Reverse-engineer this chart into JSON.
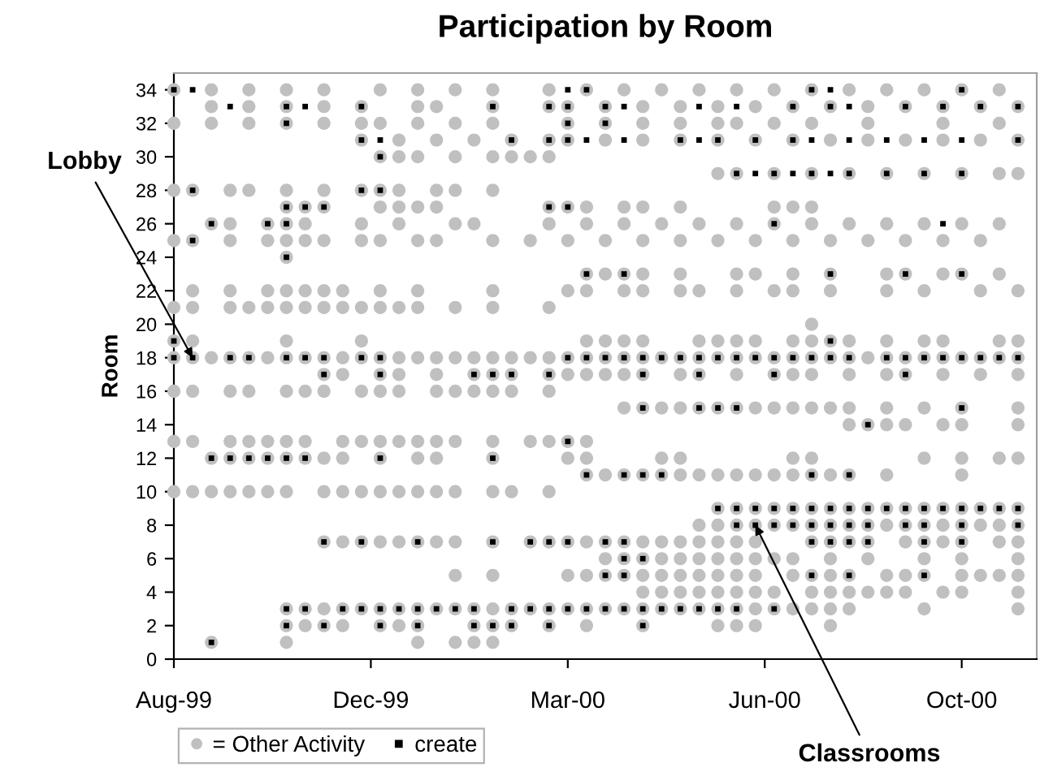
{
  "chart_data": {
    "type": "scatter",
    "title": "Participation by Room",
    "ylabel": "Room",
    "xlim": [
      "1999-08-20",
      "2000-11-22"
    ],
    "xticks": [
      {
        "value": "1999-08-20",
        "label": "Aug-99"
      },
      {
        "value": "1999-12-03",
        "label": "Dec-99"
      },
      {
        "value": "2000-03-17",
        "label": "Mar-00"
      },
      {
        "value": "2000-06-30",
        "label": "Jun-00"
      },
      {
        "value": "2000-10-13",
        "label": "Oct-00"
      }
    ],
    "ylim": [
      0,
      35
    ],
    "yticks": [
      0,
      2,
      4,
      6,
      8,
      10,
      12,
      14,
      16,
      18,
      20,
      22,
      24,
      26,
      28,
      30,
      32,
      34
    ],
    "grid": false,
    "legend": "bottom left",
    "annotations": [
      {
        "text": "Lobby",
        "x": "1999-08-30",
        "y": 18
      },
      {
        "text": "Classrooms",
        "x": "2000-06-25",
        "y": 8
      }
    ],
    "series": [
      {
        "name": "= Other Activity",
        "color": "#c0c0c0",
        "marker": "circle",
        "x": [
          "1999-08-20",
          "1999-09-09",
          "1999-09-29",
          "1999-10-19",
          "1999-11-08",
          "1999-12-08",
          "1999-12-28",
          "2000-01-17",
          "2000-02-06",
          "2000-03-07",
          "2000-03-27",
          "2000-04-16",
          "2000-05-06",
          "2000-05-26",
          "2000-06-15",
          "2000-07-05",
          "2000-07-25",
          "2000-08-14",
          "2000-09-03",
          "2000-09-23",
          "2000-10-13",
          "2000-11-02",
          "1999-09-09",
          "1999-09-29",
          "1999-10-19",
          "1999-11-08",
          "1999-11-28",
          "1999-12-28",
          "2000-01-07",
          "2000-02-06",
          "2000-03-07",
          "2000-03-17",
          "2000-04-06",
          "2000-04-26",
          "2000-05-16",
          "2000-06-05",
          "2000-06-25",
          "2000-07-15",
          "2000-08-04",
          "2000-08-24",
          "2000-09-13",
          "2000-10-03",
          "2000-10-23",
          "2000-11-12",
          "1999-08-20",
          "1999-09-09",
          "1999-09-29",
          "1999-10-19",
          "1999-11-08",
          "1999-11-28",
          "1999-12-08",
          "1999-12-28",
          "2000-01-17",
          "2000-02-06",
          "2000-03-17",
          "2000-04-06",
          "2000-04-26",
          "2000-05-16",
          "2000-06-05",
          "2000-06-15",
          "2000-07-05",
          "2000-07-25",
          "2000-08-24",
          "2000-10-03",
          "2000-11-02",
          "1999-11-28",
          "1999-12-18",
          "2000-01-07",
          "2000-01-27",
          "2000-02-16",
          "2000-03-07",
          "2000-03-17",
          "2000-04-06",
          "2000-04-26",
          "2000-05-16",
          "2000-06-05",
          "2000-06-25",
          "2000-07-15",
          "2000-08-04",
          "2000-08-24",
          "2000-09-13",
          "2000-10-03",
          "2000-10-23",
          "2000-11-12",
          "1999-12-08",
          "1999-12-18",
          "1999-12-28",
          "2000-01-17",
          "2000-02-06",
          "2000-02-16",
          "2000-02-26",
          "2000-03-07",
          "2000-06-05",
          "2000-06-15",
          "2000-07-05",
          "2000-07-25",
          "2000-08-14",
          "2000-09-03",
          "2000-09-23",
          "2000-10-13",
          "2000-11-02",
          "2000-11-12",
          "1999-08-20",
          "1999-08-30",
          "1999-09-19",
          "1999-09-29",
          "1999-10-19",
          "1999-11-08",
          "1999-11-28",
          "1999-12-08",
          "1999-12-18",
          "2000-01-07",
          "2000-01-17",
          "2000-02-06",
          "1999-10-19",
          "1999-10-29",
          "1999-11-08",
          "1999-12-08",
          "1999-12-18",
          "1999-12-28",
          "2000-01-07",
          "2000-03-07",
          "2000-03-17",
          "2000-03-27",
          "2000-04-16",
          "2000-04-26",
          "2000-05-16",
          "2000-07-05",
          "2000-07-15",
          "2000-07-25",
          "1999-09-09",
          "1999-09-19",
          "1999-10-09",
          "1999-10-19",
          "1999-10-29",
          "1999-11-28",
          "1999-12-18",
          "2000-01-17",
          "2000-01-27",
          "2000-03-07",
          "2000-03-27",
          "2000-04-16",
          "2000-05-06",
          "2000-05-26",
          "2000-06-15",
          "2000-07-05",
          "2000-07-25",
          "2000-08-14",
          "2000-09-03",
          "2000-09-23",
          "2000-10-13",
          "2000-11-02",
          "1999-08-20",
          "1999-08-30",
          "1999-09-19",
          "1999-10-09",
          "1999-10-19",
          "1999-10-29",
          "1999-11-08",
          "1999-11-28",
          "1999-12-08",
          "1999-12-28",
          "2000-01-07",
          "2000-02-06",
          "2000-02-26",
          "2000-03-17",
          "2000-04-06",
          "2000-04-26",
          "2000-05-16",
          "2000-06-05",
          "2000-06-25",
          "2000-07-15",
          "2000-08-04",
          "2000-08-24",
          "2000-09-13",
          "2000-10-03",
          "2000-10-23",
          "1999-10-19",
          "2000-03-27",
          "2000-04-06",
          "2000-04-16",
          "2000-04-26",
          "2000-05-16",
          "2000-06-15",
          "2000-06-25",
          "2000-07-15",
          "2000-08-04",
          "2000-09-03",
          "2000-09-13",
          "2000-10-03",
          "2000-10-13",
          "2000-11-02",
          "1999-08-30",
          "1999-09-19",
          "1999-10-09",
          "1999-10-19",
          "1999-10-29",
          "1999-11-08",
          "1999-11-18",
          "1999-12-08",
          "1999-12-28",
          "2000-02-06",
          "2000-03-17",
          "2000-03-27",
          "2000-04-16",
          "2000-04-26",
          "2000-05-16",
          "2000-05-26",
          "2000-06-15",
          "2000-07-05",
          "2000-07-15",
          "2000-08-04",
          "2000-09-03",
          "2000-09-23",
          "2000-10-23",
          "2000-11-12",
          "1999-08-20",
          "1999-08-30",
          "1999-09-19",
          "1999-09-29",
          "1999-10-09",
          "1999-10-19",
          "1999-10-29",
          "1999-11-08",
          "1999-11-18",
          "1999-11-28",
          "1999-12-08",
          "1999-12-18",
          "1999-12-28",
          "2000-01-17",
          "2000-02-06",
          "2000-03-07",
          "2000-07-25",
          "1999-08-20",
          "1999-08-30",
          "1999-10-19",
          "1999-11-28",
          "2000-03-27",
          "2000-04-06",
          "2000-04-16",
          "2000-04-26",
          "2000-05-26",
          "2000-06-05",
          "2000-06-15",
          "2000-06-25",
          "2000-07-15",
          "2000-07-25",
          "2000-08-04",
          "2000-08-14",
          "2000-09-03",
          "2000-09-23",
          "2000-10-03",
          "2000-11-02",
          "2000-11-12",
          "1999-08-20",
          "1999-08-30",
          "1999-09-09",
          "1999-09-19",
          "1999-09-29",
          "1999-10-09",
          "1999-10-19",
          "1999-10-29",
          "1999-11-08",
          "1999-11-18",
          "1999-11-28",
          "1999-12-08",
          "1999-12-18",
          "1999-12-28",
          "2000-01-07",
          "2000-01-17",
          "2000-01-27",
          "2000-02-06",
          "2000-02-16",
          "2000-02-26",
          "2000-03-07",
          "2000-03-17",
          "2000-03-27",
          "2000-04-06",
          "2000-04-16",
          "2000-04-26",
          "2000-05-06",
          "2000-05-16",
          "2000-05-26",
          "2000-06-05",
          "2000-06-15",
          "2000-06-25",
          "2000-07-05",
          "2000-07-15",
          "2000-07-25",
          "2000-08-04",
          "2000-08-14",
          "2000-08-24",
          "2000-09-03",
          "2000-09-13",
          "2000-09-23",
          "2000-10-03",
          "2000-10-13",
          "2000-10-23",
          "2000-11-02",
          "2000-11-12",
          "1999-11-08",
          "1999-11-18",
          "1999-12-08",
          "1999-12-18",
          "2000-01-07",
          "2000-01-27",
          "2000-02-06",
          "2000-02-16",
          "2000-03-07",
          "2000-03-17",
          "2000-03-27",
          "2000-04-06",
          "2000-04-16",
          "2000-04-26",
          "2000-05-16",
          "2000-05-26",
          "2000-06-15",
          "2000-07-05",
          "2000-07-15",
          "2000-07-25",
          "2000-08-14",
          "2000-09-03",
          "2000-09-13",
          "2000-10-03",
          "2000-10-23",
          "2000-11-12",
          "1999-08-20",
          "1999-08-30",
          "1999-09-19",
          "1999-09-29",
          "1999-10-19",
          "1999-10-29",
          "1999-11-08",
          "1999-11-28",
          "1999-12-08",
          "1999-12-18",
          "2000-01-07",
          "2000-01-17",
          "2000-01-27",
          "2000-02-06",
          "2000-02-16",
          "2000-03-07",
          "2000-04-16",
          "2000-04-26",
          "2000-05-06",
          "2000-05-16",
          "2000-05-26",
          "2000-06-05",
          "2000-06-15",
          "2000-06-25",
          "2000-07-05",
          "2000-07-15",
          "2000-07-25",
          "2000-08-04",
          "2000-08-14",
          "2000-09-03",
          "2000-09-23",
          "2000-10-13",
          "2000-11-12",
          "2000-08-14",
          "2000-08-24",
          "2000-09-03",
          "2000-09-13",
          "2000-10-03",
          "2000-10-13",
          "2000-11-12",
          "1999-08-20",
          "1999-08-30",
          "1999-09-19",
          "1999-09-29",
          "1999-10-09",
          "1999-10-19",
          "1999-10-29",
          "1999-11-18",
          "1999-11-28",
          "1999-12-08",
          "1999-12-18",
          "1999-12-28",
          "2000-01-07",
          "2000-01-17",
          "2000-02-06",
          "2000-02-26",
          "2000-03-07",
          "2000-03-17",
          "2000-03-27",
          "1999-09-09",
          "1999-09-19",
          "1999-09-29",
          "1999-10-09",
          "1999-10-19",
          "1999-10-29",
          "1999-11-08",
          "1999-11-18",
          "1999-12-08",
          "1999-12-28",
          "2000-01-07",
          "2000-02-06",
          "2000-03-17",
          "2000-03-27",
          "2000-05-06",
          "2000-05-16",
          "2000-07-15",
          "2000-07-25",
          "2000-09-23",
          "2000-10-13",
          "2000-11-02",
          "2000-11-12",
          "2000-03-27",
          "2000-04-06",
          "2000-04-16",
          "2000-04-26",
          "2000-05-06",
          "2000-05-16",
          "2000-05-26",
          "2000-06-05",
          "2000-06-15",
          "2000-06-25",
          "2000-07-05",
          "2000-07-15",
          "2000-07-25",
          "2000-08-04",
          "2000-08-14",
          "2000-09-03",
          "2000-10-13",
          "1999-08-20",
          "1999-08-30",
          "1999-09-09",
          "1999-09-19",
          "1999-09-29",
          "1999-10-09",
          "1999-10-19",
          "1999-11-08",
          "1999-11-18",
          "1999-11-28",
          "1999-12-08",
          "1999-12-18",
          "1999-12-28",
          "2000-01-07",
          "2000-01-17",
          "2000-02-06",
          "2000-02-16",
          "2000-03-07",
          "2000-06-05",
          "2000-06-15",
          "2000-06-25",
          "2000-07-05",
          "2000-07-15",
          "2000-07-25",
          "2000-08-04",
          "2000-08-14",
          "2000-08-24",
          "2000-09-03",
          "2000-09-13",
          "2000-09-23",
          "2000-10-03",
          "2000-10-13",
          "2000-10-23",
          "2000-11-02",
          "2000-11-12",
          "2000-05-26",
          "2000-06-05",
          "2000-06-15",
          "2000-06-25",
          "2000-07-05",
          "2000-07-15",
          "2000-07-25",
          "2000-08-04",
          "2000-08-14",
          "2000-08-24",
          "2000-09-03",
          "2000-09-13",
          "2000-09-23",
          "2000-10-03",
          "2000-10-13",
          "2000-10-23",
          "2000-11-02",
          "2000-11-12",
          "1999-11-08",
          "1999-11-18",
          "1999-11-28",
          "1999-12-08",
          "1999-12-18",
          "1999-12-28",
          "2000-01-07",
          "2000-01-17",
          "2000-02-06",
          "2000-02-26",
          "2000-03-07",
          "2000-03-17",
          "2000-03-27",
          "2000-04-06",
          "2000-04-16",
          "2000-04-26",
          "2000-05-06",
          "2000-05-16",
          "2000-05-26",
          "2000-06-05",
          "2000-06-15",
          "2000-06-25",
          "2000-07-25",
          "2000-08-04",
          "2000-08-14",
          "2000-08-24",
          "2000-09-13",
          "2000-09-23",
          "2000-10-03",
          "2000-10-13",
          "2000-11-02",
          "2000-11-12",
          "2000-04-06",
          "2000-04-16",
          "2000-04-26",
          "2000-05-06",
          "2000-05-16",
          "2000-05-26",
          "2000-06-05",
          "2000-06-15",
          "2000-06-25",
          "2000-07-05",
          "2000-07-15",
          "2000-08-04",
          "2000-08-24",
          "2000-09-23",
          "2000-10-13",
          "2000-11-12",
          "2000-01-17",
          "2000-02-06",
          "2000-03-17",
          "2000-03-27",
          "2000-04-06",
          "2000-04-16",
          "2000-04-26",
          "2000-05-06",
          "2000-05-16",
          "2000-05-26",
          "2000-06-05",
          "2000-06-15",
          "2000-06-25",
          "2000-07-15",
          "2000-07-25",
          "2000-08-04",
          "2000-08-14",
          "2000-09-03",
          "2000-09-13",
          "2000-09-23",
          "2000-10-13",
          "2000-10-23",
          "2000-11-02",
          "2000-11-12",
          "2000-04-26",
          "2000-05-06",
          "2000-05-16",
          "2000-05-26",
          "2000-06-05",
          "2000-06-15",
          "2000-06-25",
          "2000-07-05",
          "2000-07-25",
          "2000-08-04",
          "2000-08-14",
          "2000-08-24",
          "2000-09-03",
          "2000-09-13",
          "2000-10-03",
          "2000-10-13",
          "2000-11-12",
          "1999-10-19",
          "1999-10-29",
          "1999-11-08",
          "1999-11-18",
          "1999-11-28",
          "1999-12-08",
          "1999-12-18",
          "1999-12-28",
          "2000-01-07",
          "2000-01-17",
          "2000-01-27",
          "2000-02-06",
          "2000-02-16",
          "2000-02-26",
          "2000-03-07",
          "2000-03-17",
          "2000-03-27",
          "2000-04-06",
          "2000-04-16",
          "2000-04-26",
          "2000-05-06",
          "2000-05-16",
          "2000-05-26",
          "2000-06-05",
          "2000-06-15",
          "2000-06-25",
          "2000-07-05",
          "2000-07-15",
          "2000-07-25",
          "2000-08-04",
          "2000-08-14",
          "2000-09-23",
          "2000-11-12",
          "1999-10-19",
          "1999-10-29",
          "1999-11-08",
          "1999-11-18",
          "1999-12-08",
          "1999-12-18",
          "1999-12-28",
          "2000-01-27",
          "2000-02-06",
          "2000-02-16",
          "2000-03-07",
          "2000-03-27",
          "2000-04-26",
          "2000-06-05",
          "2000-06-15",
          "2000-06-25",
          "2000-08-04",
          "1999-09-09",
          "1999-10-19",
          "1999-12-28",
          "2000-01-17",
          "2000-01-27",
          "2000-02-06"
        ],
        "values": [
          34,
          34,
          34,
          34,
          34,
          34,
          34,
          34,
          34,
          34,
          34,
          34,
          34,
          34,
          34,
          34,
          34,
          34,
          34,
          34,
          34,
          34,
          33,
          33,
          33,
          33,
          33,
          33,
          33,
          33,
          33,
          33,
          33,
          33,
          33,
          33,
          33,
          33,
          33,
          33,
          33,
          33,
          33,
          33,
          32,
          32,
          32,
          32,
          32,
          32,
          32,
          32,
          32,
          32,
          32,
          32,
          32,
          32,
          32,
          32,
          32,
          32,
          32,
          32,
          32,
          31,
          31,
          31,
          31,
          31,
          31,
          31,
          31,
          31,
          31,
          31,
          31,
          31,
          31,
          31,
          31,
          31,
          31,
          31,
          30,
          30,
          30,
          30,
          30,
          30,
          30,
          30,
          29,
          29,
          29,
          29,
          29,
          29,
          29,
          29,
          29,
          29,
          28,
          28,
          28,
          28,
          28,
          28,
          28,
          28,
          28,
          28,
          28,
          28,
          27,
          27,
          27,
          27,
          27,
          27,
          27,
          27,
          27,
          27,
          27,
          27,
          27,
          27,
          27,
          27,
          26,
          26,
          26,
          26,
          26,
          26,
          26,
          26,
          26,
          26,
          26,
          26,
          26,
          26,
          26,
          26,
          26,
          26,
          26,
          26,
          26,
          26,
          25,
          25,
          25,
          25,
          25,
          25,
          25,
          25,
          25,
          25,
          25,
          25,
          25,
          25,
          25,
          25,
          25,
          25,
          25,
          25,
          25,
          25,
          25,
          25,
          25,
          24,
          23,
          23,
          23,
          23,
          23,
          23,
          23,
          23,
          23,
          23,
          23,
          23,
          23,
          23,
          22,
          22,
          22,
          22,
          22,
          22,
          22,
          22,
          22,
          22,
          22,
          22,
          22,
          22,
          22,
          22,
          22,
          22,
          22,
          22,
          22,
          22,
          22,
          22,
          21,
          21,
          21,
          21,
          21,
          21,
          21,
          21,
          21,
          21,
          21,
          21,
          21,
          21,
          21,
          21,
          20,
          19,
          19,
          19,
          19,
          19,
          19,
          19,
          19,
          19,
          19,
          19,
          19,
          19,
          19,
          19,
          19,
          19,
          19,
          19,
          19,
          19,
          18,
          18,
          18,
          18,
          18,
          18,
          18,
          18,
          18,
          18,
          18,
          18,
          18,
          18,
          18,
          18,
          18,
          18,
          18,
          18,
          18,
          18,
          18,
          18,
          18,
          18,
          18,
          18,
          18,
          18,
          18,
          18,
          18,
          18,
          18,
          18,
          18,
          18,
          18,
          18,
          18,
          18,
          18,
          18,
          18,
          18,
          17,
          17,
          17,
          17,
          17,
          17,
          17,
          17,
          17,
          17,
          17,
          17,
          17,
          17,
          17,
          17,
          17,
          17,
          17,
          17,
          17,
          17,
          17,
          17,
          17,
          17,
          16,
          16,
          16,
          16,
          16,
          16,
          16,
          16,
          16,
          16,
          16,
          16,
          16,
          16,
          16,
          16,
          15,
          15,
          15,
          15,
          15,
          15,
          15,
          15,
          15,
          15,
          15,
          15,
          15,
          15,
          15,
          15,
          15,
          14,
          14,
          14,
          14,
          14,
          14,
          14,
          13,
          13,
          13,
          13,
          13,
          13,
          13,
          13,
          13,
          13,
          13,
          13,
          13,
          13,
          13,
          13,
          13,
          13,
          13,
          12,
          12,
          12,
          12,
          12,
          12,
          12,
          12,
          12,
          12,
          12,
          12,
          12,
          12,
          12,
          12,
          12,
          12,
          12,
          12,
          12,
          12,
          11,
          11,
          11,
          11,
          11,
          11,
          11,
          11,
          11,
          11,
          11,
          11,
          11,
          11,
          11,
          11,
          11,
          10,
          10,
          10,
          10,
          10,
          10,
          10,
          10,
          10,
          10,
          10,
          10,
          10,
          10,
          10,
          10,
          10,
          10,
          9,
          9,
          9,
          9,
          9,
          9,
          9,
          9,
          9,
          9,
          9,
          9,
          9,
          9,
          9,
          9,
          9,
          8,
          8,
          8,
          8,
          8,
          8,
          8,
          8,
          8,
          8,
          8,
          8,
          8,
          8,
          8,
          8,
          8,
          8,
          7,
          7,
          7,
          7,
          7,
          7,
          7,
          7,
          7,
          7,
          7,
          7,
          7,
          7,
          7,
          7,
          7,
          7,
          7,
          7,
          7,
          7,
          7,
          7,
          7,
          7,
          7,
          7,
          7,
          7,
          7,
          7,
          6,
          6,
          6,
          6,
          6,
          6,
          6,
          6,
          6,
          6,
          6,
          6,
          6,
          6,
          6,
          6,
          5,
          5,
          5,
          5,
          5,
          5,
          5,
          5,
          5,
          5,
          5,
          5,
          5,
          5,
          5,
          5,
          5,
          5,
          5,
          5,
          5,
          5,
          5,
          5,
          4,
          4,
          4,
          4,
          4,
          4,
          4,
          4,
          4,
          4,
          4,
          4,
          4,
          4,
          4,
          4,
          4,
          3,
          3,
          3,
          3,
          3,
          3,
          3,
          3,
          3,
          3,
          3,
          3,
          3,
          3,
          3,
          3,
          3,
          3,
          3,
          3,
          3,
          3,
          3,
          3,
          3,
          3,
          3,
          3,
          3,
          3,
          3,
          3,
          3,
          2,
          2,
          2,
          2,
          2,
          2,
          2,
          2,
          2,
          2,
          2,
          2,
          2,
          2,
          2,
          2,
          2,
          1,
          1,
          1,
          1,
          1,
          1
        ]
      },
      {
        "name": "create",
        "color": "#000000",
        "marker": "square",
        "x": [
          "1999-08-20",
          "1999-08-30",
          "2000-03-17",
          "2000-03-27",
          "2000-07-25",
          "2000-08-04",
          "2000-10-13",
          "1999-09-19",
          "1999-10-19",
          "1999-10-29",
          "1999-11-28",
          "2000-02-06",
          "2000-03-07",
          "2000-03-17",
          "2000-04-06",
          "2000-04-16",
          "2000-05-26",
          "2000-06-15",
          "2000-07-15",
          "2000-08-04",
          "2000-08-14",
          "2000-09-13",
          "2000-10-03",
          "2000-10-23",
          "2000-11-12",
          "1999-10-19",
          "2000-03-17",
          "2000-04-06",
          "1999-11-28",
          "1999-12-08",
          "2000-02-16",
          "2000-03-07",
          "2000-03-17",
          "2000-03-27",
          "2000-04-16",
          "2000-05-16",
          "2000-05-26",
          "2000-06-05",
          "2000-06-25",
          "2000-07-15",
          "2000-07-25",
          "2000-08-14",
          "2000-09-03",
          "2000-09-23",
          "2000-10-13",
          "2000-11-12",
          "1999-12-08",
          "2000-06-15",
          "2000-06-25",
          "2000-07-05",
          "2000-07-15",
          "2000-07-25",
          "2000-08-04",
          "2000-08-14",
          "2000-09-03",
          "2000-09-23",
          "2000-10-13",
          "1999-08-30",
          "1999-11-28",
          "1999-12-08",
          "1999-10-19",
          "1999-10-29",
          "1999-11-08",
          "2000-03-07",
          "2000-03-17",
          "1999-09-09",
          "1999-10-09",
          "1999-10-19",
          "2000-07-05",
          "2000-10-03",
          "1999-08-30",
          "1999-10-19",
          "2000-03-27",
          "2000-04-16",
          "2000-08-04",
          "2000-09-13",
          "2000-10-13",
          "1999-08-20",
          "2000-08-04",
          "1999-08-20",
          "1999-08-30",
          "1999-09-19",
          "1999-09-29",
          "1999-10-19",
          "1999-10-29",
          "1999-11-08",
          "1999-11-28",
          "1999-12-08",
          "2000-03-17",
          "2000-03-27",
          "2000-04-06",
          "2000-04-16",
          "2000-04-26",
          "2000-05-06",
          "2000-05-16",
          "2000-05-26",
          "2000-06-05",
          "2000-06-15",
          "2000-06-25",
          "2000-07-05",
          "2000-07-15",
          "2000-07-25",
          "2000-08-04",
          "2000-08-14",
          "2000-09-03",
          "2000-09-13",
          "2000-09-23",
          "2000-10-03",
          "2000-10-13",
          "2000-10-23",
          "2000-11-02",
          "2000-11-12",
          "1999-11-08",
          "1999-12-08",
          "2000-01-27",
          "2000-02-06",
          "2000-02-16",
          "2000-03-07",
          "2000-04-26",
          "2000-05-26",
          "2000-07-05",
          "2000-09-13",
          "2000-04-26",
          "2000-05-26",
          "2000-06-05",
          "2000-06-15",
          "2000-10-13",
          "2000-08-24",
          "2000-03-17",
          "1999-09-09",
          "1999-09-19",
          "1999-09-29",
          "1999-10-09",
          "1999-10-19",
          "1999-10-29",
          "1999-12-08",
          "2000-02-06",
          "2000-03-27",
          "2000-04-16",
          "2000-04-26",
          "2000-05-06",
          "2000-07-25",
          "2000-08-14",
          "2000-06-05",
          "2000-06-15",
          "2000-06-25",
          "2000-07-05",
          "2000-07-15",
          "2000-07-25",
          "2000-08-04",
          "2000-08-14",
          "2000-08-24",
          "2000-09-03",
          "2000-09-13",
          "2000-09-23",
          "2000-10-03",
          "2000-10-13",
          "2000-10-23",
          "2000-11-02",
          "2000-11-12",
          "2000-06-15",
          "2000-06-25",
          "2000-07-05",
          "2000-07-15",
          "2000-07-25",
          "2000-08-04",
          "2000-08-14",
          "2000-08-24",
          "2000-09-13",
          "2000-09-23",
          "2000-10-13",
          "2000-11-12",
          "1999-11-08",
          "1999-11-28",
          "1999-12-28",
          "2000-02-06",
          "2000-02-26",
          "2000-03-07",
          "2000-03-17",
          "2000-04-06",
          "2000-04-16",
          "2000-07-25",
          "2000-08-04",
          "2000-08-14",
          "2000-08-24",
          "2000-09-23",
          "2000-10-13",
          "2000-04-16",
          "2000-04-26",
          "2000-04-06",
          "2000-04-16",
          "2000-07-25",
          "2000-08-14",
          "2000-09-23",
          "1999-10-19",
          "1999-10-29",
          "1999-11-18",
          "1999-11-28",
          "1999-12-08",
          "1999-12-18",
          "1999-12-28",
          "2000-01-07",
          "2000-01-17",
          "2000-01-27",
          "2000-02-16",
          "2000-02-26",
          "2000-03-07",
          "2000-03-17",
          "2000-03-27",
          "2000-04-06",
          "2000-04-16",
          "2000-04-26",
          "2000-05-06",
          "2000-05-16",
          "2000-05-26",
          "2000-06-05",
          "2000-06-15",
          "2000-07-05",
          "1999-10-19",
          "1999-11-08",
          "1999-12-08",
          "1999-12-28",
          "2000-01-27",
          "2000-02-06",
          "2000-02-16",
          "2000-03-07",
          "2000-04-26",
          "1999-09-09"
        ],
        "values": [
          34,
          34,
          34,
          34,
          34,
          34,
          34,
          33,
          33,
          33,
          33,
          33,
          33,
          33,
          33,
          33,
          33,
          33,
          33,
          33,
          33,
          33,
          33,
          33,
          33,
          32,
          32,
          32,
          31,
          31,
          31,
          31,
          31,
          31,
          31,
          31,
          31,
          31,
          31,
          31,
          31,
          31,
          31,
          31,
          31,
          31,
          30,
          29,
          29,
          29,
          29,
          29,
          29,
          29,
          29,
          29,
          29,
          28,
          28,
          28,
          27,
          27,
          27,
          27,
          27,
          26,
          26,
          26,
          26,
          26,
          25,
          24,
          23,
          23,
          23,
          23,
          23,
          19,
          19,
          18,
          18,
          18,
          18,
          18,
          18,
          18,
          18,
          18,
          18,
          18,
          18,
          18,
          18,
          18,
          18,
          18,
          18,
          18,
          18,
          18,
          18,
          18,
          18,
          18,
          18,
          18,
          18,
          18,
          18,
          18,
          18,
          18,
          17,
          17,
          17,
          17,
          17,
          17,
          17,
          17,
          17,
          17,
          15,
          15,
          15,
          15,
          15,
          14,
          13,
          12,
          12,
          12,
          12,
          12,
          12,
          12,
          12,
          11,
          11,
          11,
          11,
          11,
          11,
          9,
          9,
          9,
          9,
          9,
          9,
          9,
          9,
          9,
          9,
          9,
          9,
          9,
          9,
          9,
          9,
          9,
          8,
          8,
          8,
          8,
          8,
          8,
          8,
          8,
          8,
          8,
          8,
          8,
          7,
          7,
          7,
          7,
          7,
          7,
          7,
          7,
          7,
          7,
          7,
          7,
          7,
          7,
          7,
          6,
          6,
          5,
          5,
          5,
          5,
          5,
          3,
          3,
          3,
          3,
          3,
          3,
          3,
          3,
          3,
          3,
          3,
          3,
          3,
          3,
          3,
          3,
          3,
          3,
          3,
          3,
          3,
          3,
          3,
          3,
          2,
          2,
          2,
          2,
          2,
          2,
          2,
          2,
          2,
          1
        ]
      }
    ]
  }
}
